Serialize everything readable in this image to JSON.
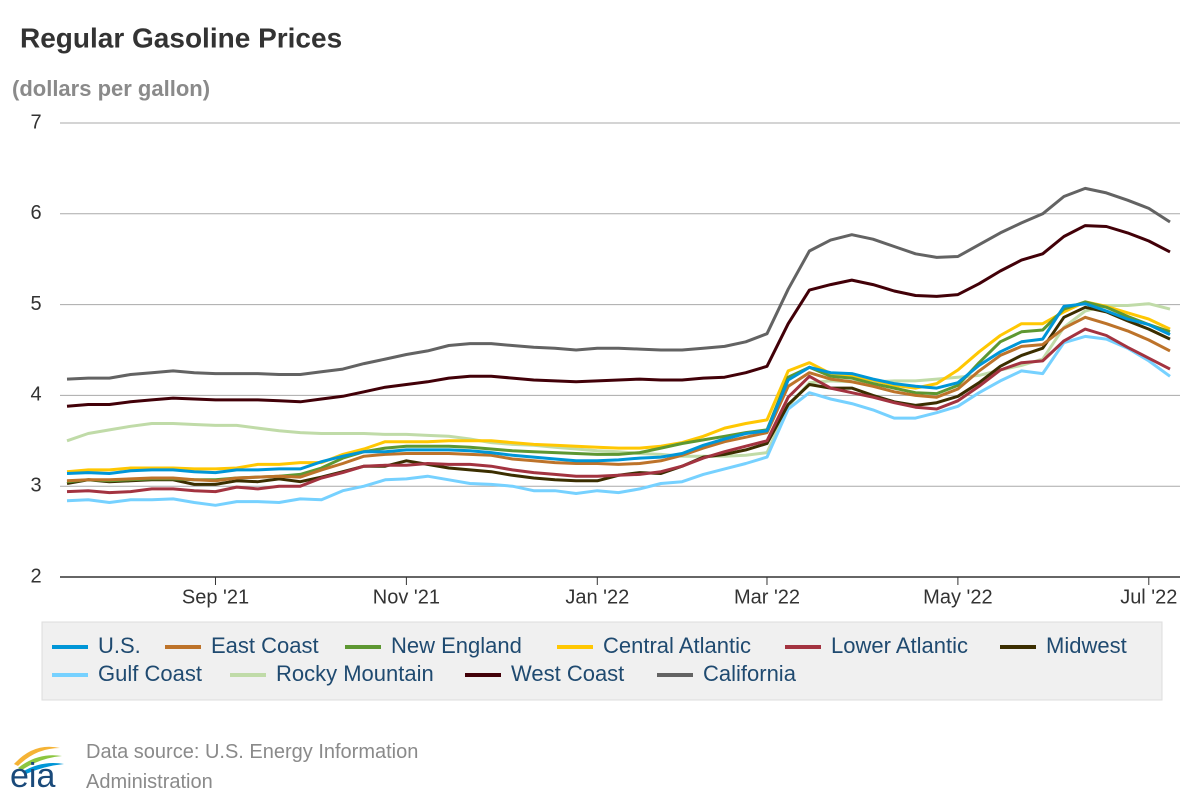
{
  "chart_data": {
    "type": "line",
    "title": "Regular Gasoline Prices",
    "subtitle": "(dollars per gallon)",
    "source": "Data source: U.S. Energy Information Administration",
    "logo": "eia",
    "categories": [
      null,
      null,
      null,
      null,
      null,
      null,
      null,
      "Sep '21",
      null,
      null,
      null,
      null,
      null,
      null,
      null,
      null,
      "Nov '21",
      null,
      null,
      null,
      null,
      null,
      null,
      null,
      null,
      "Jan '22",
      null,
      null,
      null,
      null,
      null,
      null,
      null,
      "Mar '22",
      null,
      null,
      null,
      null,
      null,
      null,
      null,
      null,
      "May '22",
      null,
      null,
      null,
      null,
      null,
      null,
      null,
      null,
      "Jul '22",
      null
    ],
    "ylim": [
      2,
      7
    ],
    "yticks": [
      2,
      3,
      4,
      5,
      6,
      7
    ],
    "grid": true,
    "series": [
      {
        "name": "U.S.",
        "color": "#0096d7",
        "values": [
          3.14,
          3.15,
          3.14,
          3.17,
          3.18,
          3.18,
          3.16,
          3.15,
          3.18,
          3.18,
          3.19,
          3.19,
          3.27,
          3.33,
          3.38,
          3.38,
          3.4,
          3.4,
          3.4,
          3.39,
          3.37,
          3.34,
          3.32,
          3.3,
          3.28,
          3.28,
          3.29,
          3.31,
          3.32,
          3.36,
          3.45,
          3.52,
          3.58,
          3.61,
          4.17,
          4.31,
          4.25,
          4.24,
          4.18,
          4.13,
          4.1,
          4.08,
          4.14,
          4.33,
          4.48,
          4.59,
          4.62,
          4.98,
          5.01,
          4.93,
          4.84,
          4.78,
          4.67
        ]
      },
      {
        "name": "East Coast",
        "color": "#bd732a",
        "values": [
          3.06,
          3.07,
          3.07,
          3.08,
          3.09,
          3.09,
          3.07,
          3.06,
          3.09,
          3.1,
          3.11,
          3.1,
          3.18,
          3.25,
          3.33,
          3.35,
          3.36,
          3.36,
          3.36,
          3.35,
          3.34,
          3.3,
          3.28,
          3.26,
          3.25,
          3.25,
          3.24,
          3.25,
          3.28,
          3.34,
          3.42,
          3.49,
          3.54,
          3.59,
          4.1,
          4.25,
          4.18,
          4.15,
          4.1,
          4.04,
          4.0,
          3.98,
          4.07,
          4.27,
          4.44,
          4.54,
          4.56,
          4.74,
          4.86,
          4.79,
          4.71,
          4.61,
          4.49
        ]
      },
      {
        "name": "New England",
        "color": "#5d9732",
        "values": [
          3.05,
          3.07,
          3.06,
          3.07,
          3.08,
          3.08,
          3.07,
          3.07,
          3.09,
          3.1,
          3.11,
          3.13,
          3.2,
          3.31,
          3.38,
          3.42,
          3.44,
          3.44,
          3.44,
          3.43,
          3.41,
          3.39,
          3.38,
          3.37,
          3.36,
          3.35,
          3.35,
          3.37,
          3.42,
          3.47,
          3.51,
          3.55,
          3.59,
          3.62,
          4.2,
          4.31,
          4.21,
          4.19,
          4.13,
          4.08,
          4.03,
          4.02,
          4.11,
          4.36,
          4.59,
          4.7,
          4.72,
          4.95,
          5.03,
          4.97,
          4.87,
          4.78,
          4.7
        ]
      },
      {
        "name": "Central Atlantic",
        "color": "#ffc702",
        "values": [
          3.16,
          3.18,
          3.18,
          3.2,
          3.2,
          3.2,
          3.19,
          3.19,
          3.2,
          3.24,
          3.24,
          3.26,
          3.26,
          3.35,
          3.41,
          3.49,
          3.49,
          3.49,
          3.5,
          3.5,
          3.5,
          3.48,
          3.46,
          3.45,
          3.44,
          3.43,
          3.42,
          3.42,
          3.44,
          3.48,
          3.55,
          3.64,
          3.69,
          3.73,
          4.27,
          4.36,
          4.24,
          4.21,
          4.17,
          4.11,
          4.08,
          4.13,
          4.28,
          4.48,
          4.66,
          4.79,
          4.79,
          4.92,
          5.03,
          4.98,
          4.91,
          4.84,
          4.73
        ]
      },
      {
        "name": "Lower Atlantic",
        "color": "#a33340",
        "values": [
          2.94,
          2.95,
          2.93,
          2.94,
          2.97,
          2.97,
          2.95,
          2.94,
          2.99,
          2.97,
          3.0,
          3.0,
          3.09,
          3.15,
          3.22,
          3.23,
          3.23,
          3.25,
          3.24,
          3.24,
          3.22,
          3.18,
          3.15,
          3.13,
          3.11,
          3.11,
          3.12,
          3.13,
          3.16,
          3.22,
          3.31,
          3.38,
          3.44,
          3.5,
          3.98,
          4.21,
          4.08,
          4.03,
          3.98,
          3.92,
          3.87,
          3.85,
          3.94,
          4.1,
          4.28,
          4.36,
          4.38,
          4.6,
          4.73,
          4.66,
          4.53,
          4.41,
          4.29
        ]
      },
      {
        "name": "Midwest",
        "color": "#3b2e00",
        "values": [
          3.03,
          3.07,
          3.05,
          3.06,
          3.07,
          3.07,
          3.02,
          3.02,
          3.06,
          3.05,
          3.08,
          3.05,
          3.1,
          3.16,
          3.22,
          3.22,
          3.28,
          3.24,
          3.2,
          3.18,
          3.16,
          3.12,
          3.09,
          3.07,
          3.06,
          3.06,
          3.12,
          3.15,
          3.14,
          3.22,
          3.32,
          3.35,
          3.4,
          3.47,
          3.9,
          4.12,
          4.08,
          4.08,
          4.0,
          3.93,
          3.89,
          3.92,
          3.99,
          4.14,
          4.32,
          4.44,
          4.52,
          4.86,
          4.97,
          4.92,
          4.82,
          4.73,
          4.62
        ]
      },
      {
        "name": "Gulf Coast",
        "color": "#76d1ff",
        "values": [
          2.84,
          2.85,
          2.82,
          2.85,
          2.85,
          2.86,
          2.82,
          2.79,
          2.83,
          2.83,
          2.82,
          2.86,
          2.85,
          2.95,
          3.0,
          3.07,
          3.08,
          3.11,
          3.07,
          3.03,
          3.02,
          3.0,
          2.95,
          2.95,
          2.92,
          2.95,
          2.93,
          2.97,
          3.03,
          3.05,
          3.13,
          3.19,
          3.25,
          3.32,
          3.85,
          4.03,
          3.96,
          3.91,
          3.84,
          3.75,
          3.75,
          3.81,
          3.88,
          4.03,
          4.16,
          4.27,
          4.24,
          4.58,
          4.65,
          4.62,
          4.52,
          4.38,
          4.21
        ]
      },
      {
        "name": "Rocky Mountain",
        "color": "#c0dba8",
        "values": [
          3.5,
          3.58,
          3.62,
          3.66,
          3.69,
          3.69,
          3.68,
          3.67,
          3.67,
          3.64,
          3.61,
          3.59,
          3.58,
          3.58,
          3.58,
          3.57,
          3.57,
          3.56,
          3.55,
          3.52,
          3.48,
          3.46,
          3.45,
          3.43,
          3.41,
          3.39,
          3.38,
          3.36,
          3.35,
          3.33,
          3.33,
          3.33,
          3.34,
          3.37,
          3.88,
          4.14,
          4.16,
          4.15,
          4.15,
          4.16,
          4.16,
          4.18,
          4.2,
          4.22,
          4.28,
          4.33,
          4.4,
          4.75,
          4.93,
          4.99,
          4.99,
          5.01,
          4.95
        ]
      },
      {
        "name": "West Coast",
        "color": "#420008",
        "values": [
          3.88,
          3.9,
          3.9,
          3.93,
          3.95,
          3.97,
          3.96,
          3.95,
          3.95,
          3.95,
          3.94,
          3.93,
          3.96,
          3.99,
          4.04,
          4.09,
          4.12,
          4.15,
          4.19,
          4.21,
          4.21,
          4.19,
          4.17,
          4.16,
          4.15,
          4.16,
          4.17,
          4.18,
          4.17,
          4.17,
          4.19,
          4.2,
          4.25,
          4.32,
          4.79,
          5.16,
          5.22,
          5.27,
          5.22,
          5.15,
          5.1,
          5.09,
          5.11,
          5.23,
          5.37,
          5.49,
          5.56,
          5.75,
          5.87,
          5.86,
          5.79,
          5.7,
          5.58
        ]
      },
      {
        "name": "California",
        "color": "#636363",
        "values": [
          4.18,
          4.19,
          4.19,
          4.23,
          4.25,
          4.27,
          4.25,
          4.24,
          4.24,
          4.24,
          4.23,
          4.23,
          4.26,
          4.29,
          4.35,
          4.4,
          4.45,
          4.49,
          4.55,
          4.57,
          4.57,
          4.55,
          4.53,
          4.52,
          4.5,
          4.52,
          4.52,
          4.51,
          4.5,
          4.5,
          4.52,
          4.54,
          4.59,
          4.68,
          5.17,
          5.59,
          5.71,
          5.77,
          5.72,
          5.64,
          5.56,
          5.52,
          5.53,
          5.66,
          5.79,
          5.9,
          6.0,
          6.19,
          6.28,
          6.23,
          6.15,
          6.06,
          5.91
        ]
      }
    ]
  }
}
